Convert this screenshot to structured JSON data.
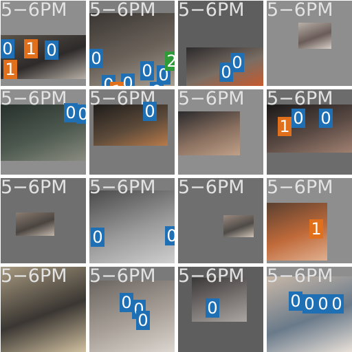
{
  "colors": {
    "badge_blue": "#1e6fb4",
    "badge_orange": "#e0701c",
    "badge_green": "#2e9a38",
    "tile_gray_light": "#8e8e8e",
    "tile_gray_mid": "#7a7a7a",
    "tile_gray_dark": "#5e5e5e"
  },
  "tiles": [
    {
      "time_label": "5−6PM",
      "badges": [
        {
          "text": "0",
          "color": "blue"
        },
        {
          "text": "1",
          "color": "orange"
        },
        {
          "text": "0",
          "color": "blue"
        },
        {
          "text": "1",
          "color": "orange"
        }
      ]
    },
    {
      "time_label": "5−6PM",
      "badges": [
        {
          "text": "0",
          "color": "blue"
        },
        {
          "text": "0",
          "color": "blue"
        },
        {
          "text": "0",
          "color": "blue"
        },
        {
          "text": "1",
          "color": "orange"
        },
        {
          "text": "0",
          "color": "blue"
        },
        {
          "text": "0",
          "color": "blue"
        },
        {
          "text": "2",
          "color": "green"
        },
        {
          "text": "0",
          "color": "blue"
        }
      ]
    },
    {
      "time_label": "5−6PM",
      "badges": [
        {
          "text": "0",
          "color": "blue"
        },
        {
          "text": "0",
          "color": "blue"
        }
      ]
    },
    {
      "time_label": "5−6PM",
      "badges": []
    },
    {
      "time_label": "5−6PM",
      "badges": [
        {
          "text": "0",
          "color": "blue"
        },
        {
          "text": "0",
          "color": "blue"
        }
      ]
    },
    {
      "time_label": "5−6PM",
      "badges": [
        {
          "text": "0",
          "color": "blue"
        }
      ]
    },
    {
      "time_label": "5−6PM",
      "badges": []
    },
    {
      "time_label": "5−6PM",
      "badges": [
        {
          "text": "1",
          "color": "orange"
        },
        {
          "text": "0",
          "color": "blue"
        },
        {
          "text": "0",
          "color": "blue"
        }
      ]
    },
    {
      "time_label": "5−6PM",
      "badges": []
    },
    {
      "time_label": "5−6PM",
      "badges": [
        {
          "text": "0",
          "color": "blue"
        },
        {
          "text": "0",
          "color": "blue"
        }
      ]
    },
    {
      "time_label": "5−6PM",
      "badges": []
    },
    {
      "time_label": "5−6PM",
      "badges": [
        {
          "text": "1",
          "color": "orange"
        }
      ]
    },
    {
      "time_label": "5−6PM",
      "badges": []
    },
    {
      "time_label": "5−6PM",
      "badges": [
        {
          "text": "0",
          "color": "blue"
        },
        {
          "text": "0",
          "color": "blue"
        },
        {
          "text": "0",
          "color": "blue"
        }
      ]
    },
    {
      "time_label": "5−6PM",
      "badges": [
        {
          "text": "0",
          "color": "blue"
        }
      ]
    },
    {
      "time_label": "5−6PM",
      "badges": [
        {
          "text": "0",
          "color": "blue"
        },
        {
          "text": "0",
          "color": "blue"
        },
        {
          "text": "0",
          "color": "blue"
        },
        {
          "text": "0",
          "color": "blue"
        }
      ]
    }
  ]
}
